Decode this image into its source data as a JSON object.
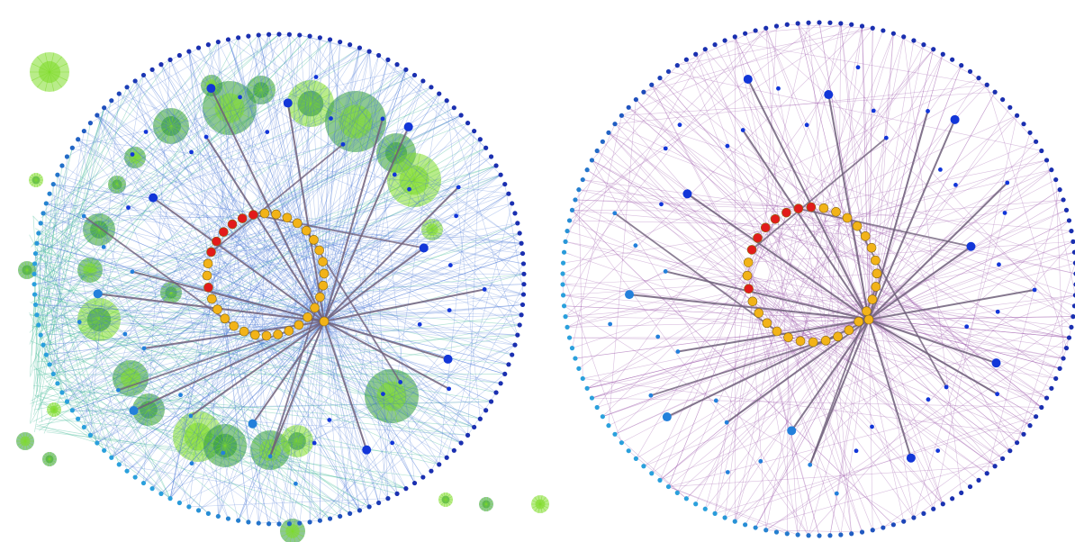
{
  "diagrams": [
    {
      "name": "network-with-clusters",
      "colors": {
        "outer_ring_top": "#1a2fb0",
        "outer_ring_bottom": "#2aa0dc",
        "mid_nodes": "#1236d8",
        "inner_ring": "#f2b318",
        "inner_ring_highlight": "#e21b1b",
        "hub_edges": "#6f5f7a",
        "thin_edges": "#4a78d6",
        "green_edges": "#2bb38a",
        "cluster_light": "#7fdc2a",
        "cluster_dark": "#2f9a3a"
      },
      "outer_ring_count": 150,
      "inner_ring_count": 32,
      "inner_ring_red_indices": [
        0,
        1,
        2,
        3,
        4,
        5,
        29
      ],
      "mid_node_count": 48
    },
    {
      "name": "network-without-clusters",
      "colors": {
        "outer_ring_top": "#1a2fb0",
        "outer_ring_bottom": "#2aa0dc",
        "mid_nodes": "#1236d8",
        "inner_ring": "#f2b318",
        "inner_ring_highlight": "#e21b1b",
        "hub_edges": "#6f5f7a",
        "thin_edges": "#a15fb0"
      },
      "outer_ring_count": 150,
      "inner_ring_count": 32,
      "inner_ring_red_indices": [
        0,
        1,
        2,
        3,
        4,
        5,
        6,
        29
      ],
      "mid_node_count": 48
    }
  ]
}
